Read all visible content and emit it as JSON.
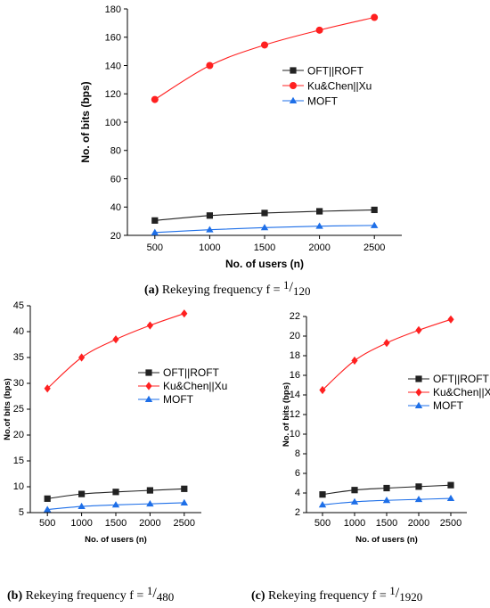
{
  "chart_data": [
    {
      "type": "line",
      "xlabel": "No. of users (n)",
      "ylabel": "No. of bits (bps)",
      "x": [
        500,
        1000,
        1500,
        2000,
        2500
      ],
      "xlim": [
        250,
        2750
      ],
      "ylim": [
        20,
        180
      ],
      "yticks": [
        20,
        40,
        60,
        80,
        100,
        120,
        140,
        160,
        180
      ],
      "legend_position": "right",
      "series": [
        {
          "name": "OFT||ROFT",
          "values": [
            30.5,
            34,
            35.8,
            37,
            38
          ],
          "color": "#222222",
          "marker": "square"
        },
        {
          "name": "Ku&Chen||Xu",
          "values": [
            116,
            140,
            154.5,
            165,
            174
          ],
          "color": "#ff2020",
          "marker": "circle"
        },
        {
          "name": "MOFT",
          "values": [
            22,
            24,
            25.5,
            26.5,
            27
          ],
          "color": "#1e6fe8",
          "marker": "triangle"
        }
      ],
      "caption": {
        "label": "(a)",
        "text": "Rekeying frequency  f = ",
        "num": "1",
        "den": "120"
      }
    },
    {
      "type": "line",
      "xlabel": "No. of users (n)",
      "ylabel": "No.of bits (bps)",
      "x": [
        500,
        1000,
        1500,
        2000,
        2500
      ],
      "xlim": [
        250,
        2750
      ],
      "ylim": [
        5,
        45
      ],
      "yticks": [
        5,
        10,
        15,
        20,
        25,
        30,
        35,
        40,
        45
      ],
      "legend_position": "right",
      "series": [
        {
          "name": "OFT||ROFT",
          "values": [
            7.7,
            8.6,
            9,
            9.3,
            9.6
          ],
          "color": "#222222",
          "marker": "square"
        },
        {
          "name": "Ku&Chen||Xu",
          "values": [
            29,
            35,
            38.5,
            41.2,
            43.5
          ],
          "color": "#ff2020",
          "marker": "diamond"
        },
        {
          "name": "MOFT",
          "values": [
            5.6,
            6.2,
            6.5,
            6.7,
            6.9
          ],
          "color": "#1e6fe8",
          "marker": "triangle"
        }
      ],
      "caption": {
        "label": "(b)",
        "text": "Rekeying frequency  f = ",
        "num": "1",
        "den": "480"
      }
    },
    {
      "type": "line",
      "xlabel": "No. of users (n)",
      "ylabel": "No. of bits (bps)",
      "x": [
        500,
        1000,
        1500,
        2000,
        2500
      ],
      "xlim": [
        250,
        2750
      ],
      "ylim": [
        2,
        22
      ],
      "yticks": [
        2,
        4,
        6,
        8,
        10,
        12,
        14,
        16,
        18,
        20,
        22
      ],
      "legend_position": "right",
      "series": [
        {
          "name": "OFT||ROFT",
          "values": [
            3.85,
            4.3,
            4.5,
            4.65,
            4.8
          ],
          "color": "#222222",
          "marker": "square"
        },
        {
          "name": "Ku&Chen||Xu",
          "values": [
            14.5,
            17.5,
            19.3,
            20.6,
            21.7
          ],
          "color": "#ff2020",
          "marker": "diamond"
        },
        {
          "name": "MOFT",
          "values": [
            2.8,
            3.1,
            3.25,
            3.35,
            3.45
          ],
          "color": "#1e6fe8",
          "marker": "triangle"
        }
      ],
      "caption": {
        "label": "(c)",
        "text": "Rekeying frequency  f = ",
        "num": "1",
        "den": "1920"
      }
    }
  ]
}
